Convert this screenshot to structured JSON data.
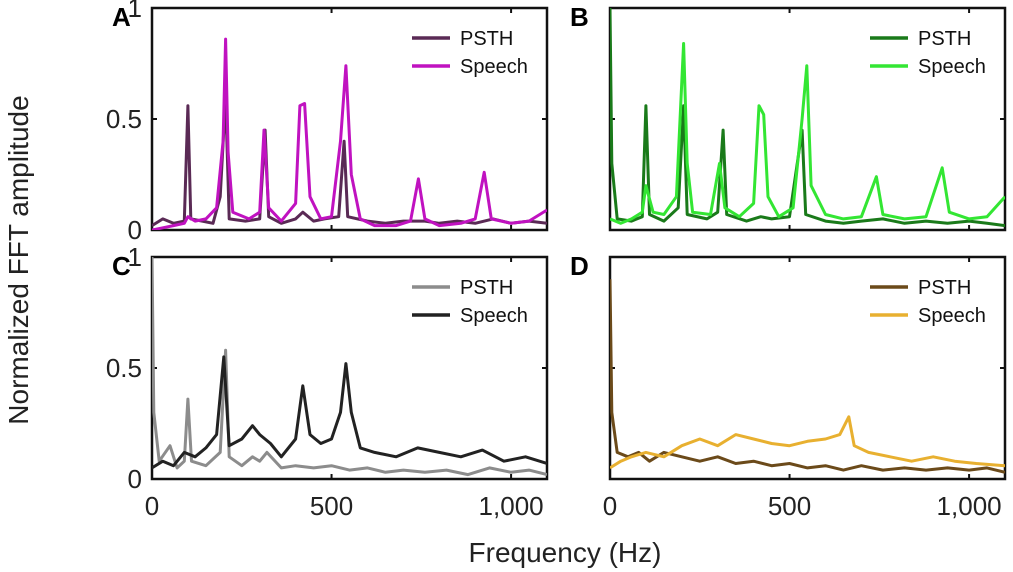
{
  "figure": {
    "ylabel": "Normalized FFT amplitude",
    "xlabel": "Frequency (Hz)"
  },
  "chart_data": [
    {
      "type": "line",
      "panel": "A",
      "xlim": [
        0,
        1100
      ],
      "ylim": [
        0,
        1
      ],
      "yticks": [
        "0",
        "0.5",
        "1"
      ],
      "xticks": [],
      "legend_position": "top-right",
      "series": [
        {
          "name": "PSTH",
          "color": "#5a2a55",
          "points": [
            [
              0,
              0.02
            ],
            [
              30,
              0.05
            ],
            [
              60,
              0.03
            ],
            [
              90,
              0.04
            ],
            [
              100,
              0.56
            ],
            [
              108,
              0.05
            ],
            [
              140,
              0.04
            ],
            [
              170,
              0.03
            ],
            [
              190,
              0.15
            ],
            [
              205,
              0.6
            ],
            [
              215,
              0.05
            ],
            [
              260,
              0.04
            ],
            [
              300,
              0.05
            ],
            [
              315,
              0.45
            ],
            [
              325,
              0.06
            ],
            [
              360,
              0.03
            ],
            [
              400,
              0.05
            ],
            [
              420,
              0.08
            ],
            [
              450,
              0.04
            ],
            [
              480,
              0.05
            ],
            [
              520,
              0.06
            ],
            [
              535,
              0.4
            ],
            [
              545,
              0.06
            ],
            [
              600,
              0.04
            ],
            [
              650,
              0.03
            ],
            [
              700,
              0.04
            ],
            [
              760,
              0.04
            ],
            [
              800,
              0.03
            ],
            [
              850,
              0.04
            ],
            [
              900,
              0.03
            ],
            [
              950,
              0.05
            ],
            [
              1000,
              0.03
            ],
            [
              1050,
              0.04
            ],
            [
              1100,
              0.03
            ]
          ]
        },
        {
          "name": "Speech",
          "color": "#c012c0",
          "points": [
            [
              0,
              0.0
            ],
            [
              30,
              0.01
            ],
            [
              60,
              0.02
            ],
            [
              90,
              0.03
            ],
            [
              100,
              0.06
            ],
            [
              120,
              0.04
            ],
            [
              150,
              0.05
            ],
            [
              180,
              0.1
            ],
            [
              198,
              0.4
            ],
            [
              205,
              0.86
            ],
            [
              212,
              0.35
            ],
            [
              225,
              0.08
            ],
            [
              270,
              0.05
            ],
            [
              300,
              0.08
            ],
            [
              312,
              0.45
            ],
            [
              325,
              0.1
            ],
            [
              360,
              0.04
            ],
            [
              400,
              0.12
            ],
            [
              412,
              0.56
            ],
            [
              425,
              0.57
            ],
            [
              440,
              0.15
            ],
            [
              470,
              0.05
            ],
            [
              500,
              0.06
            ],
            [
              525,
              0.4
            ],
            [
              540,
              0.74
            ],
            [
              555,
              0.25
            ],
            [
              580,
              0.05
            ],
            [
              620,
              0.02
            ],
            [
              680,
              0.02
            ],
            [
              720,
              0.04
            ],
            [
              742,
              0.23
            ],
            [
              760,
              0.05
            ],
            [
              800,
              0.02
            ],
            [
              860,
              0.03
            ],
            [
              900,
              0.05
            ],
            [
              925,
              0.26
            ],
            [
              945,
              0.05
            ],
            [
              1000,
              0.03
            ],
            [
              1050,
              0.04
            ],
            [
              1100,
              0.09
            ]
          ]
        }
      ]
    },
    {
      "type": "line",
      "panel": "B",
      "xlim": [
        0,
        1100
      ],
      "ylim": [
        0,
        1
      ],
      "yticks": [],
      "xticks": [],
      "legend_position": "top-right",
      "series": [
        {
          "name": "PSTH",
          "color": "#1a7a1a",
          "points": [
            [
              0,
              1.0
            ],
            [
              5,
              0.3
            ],
            [
              20,
              0.05
            ],
            [
              60,
              0.04
            ],
            [
              90,
              0.06
            ],
            [
              100,
              0.56
            ],
            [
              110,
              0.07
            ],
            [
              150,
              0.04
            ],
            [
              190,
              0.1
            ],
            [
              205,
              0.56
            ],
            [
              215,
              0.07
            ],
            [
              270,
              0.05
            ],
            [
              300,
              0.08
            ],
            [
              315,
              0.45
            ],
            [
              325,
              0.07
            ],
            [
              380,
              0.04
            ],
            [
              420,
              0.06
            ],
            [
              450,
              0.05
            ],
            [
              500,
              0.06
            ],
            [
              535,
              0.45
            ],
            [
              545,
              0.07
            ],
            [
              600,
              0.04
            ],
            [
              650,
              0.03
            ],
            [
              700,
              0.04
            ],
            [
              760,
              0.05
            ],
            [
              820,
              0.03
            ],
            [
              880,
              0.04
            ],
            [
              940,
              0.03
            ],
            [
              1000,
              0.04
            ],
            [
              1050,
              0.03
            ],
            [
              1100,
              0.02
            ]
          ]
        },
        {
          "name": "Speech",
          "color": "#33e633",
          "points": [
            [
              0,
              0.05
            ],
            [
              30,
              0.03
            ],
            [
              60,
              0.05
            ],
            [
              90,
              0.08
            ],
            [
              100,
              0.2
            ],
            [
              120,
              0.08
            ],
            [
              150,
              0.07
            ],
            [
              185,
              0.15
            ],
            [
              205,
              0.84
            ],
            [
              215,
              0.3
            ],
            [
              230,
              0.08
            ],
            [
              280,
              0.07
            ],
            [
              305,
              0.3
            ],
            [
              320,
              0.1
            ],
            [
              360,
              0.06
            ],
            [
              400,
              0.12
            ],
            [
              415,
              0.56
            ],
            [
              428,
              0.52
            ],
            [
              440,
              0.15
            ],
            [
              470,
              0.06
            ],
            [
              510,
              0.1
            ],
            [
              535,
              0.5
            ],
            [
              548,
              0.74
            ],
            [
              560,
              0.2
            ],
            [
              600,
              0.07
            ],
            [
              650,
              0.05
            ],
            [
              700,
              0.06
            ],
            [
              742,
              0.24
            ],
            [
              760,
              0.07
            ],
            [
              820,
              0.05
            ],
            [
              880,
              0.06
            ],
            [
              925,
              0.28
            ],
            [
              945,
              0.08
            ],
            [
              1000,
              0.05
            ],
            [
              1050,
              0.06
            ],
            [
              1100,
              0.15
            ]
          ]
        }
      ]
    },
    {
      "type": "line",
      "panel": "C",
      "xlim": [
        0,
        1100
      ],
      "ylim": [
        0,
        1
      ],
      "yticks": [
        "0",
        "0.5",
        "1"
      ],
      "xticks": [
        "0",
        "500",
        "1,000"
      ],
      "legend_position": "top-right",
      "series": [
        {
          "name": "PSTH",
          "color": "#8c8c8c",
          "points": [
            [
              0,
              1.0
            ],
            [
              5,
              0.3
            ],
            [
              20,
              0.08
            ],
            [
              50,
              0.15
            ],
            [
              70,
              0.05
            ],
            [
              90,
              0.08
            ],
            [
              100,
              0.36
            ],
            [
              110,
              0.08
            ],
            [
              150,
              0.06
            ],
            [
              190,
              0.12
            ],
            [
              205,
              0.58
            ],
            [
              215,
              0.1
            ],
            [
              250,
              0.06
            ],
            [
              280,
              0.1
            ],
            [
              300,
              0.08
            ],
            [
              320,
              0.12
            ],
            [
              360,
              0.05
            ],
            [
              400,
              0.06
            ],
            [
              450,
              0.05
            ],
            [
              500,
              0.06
            ],
            [
              550,
              0.04
            ],
            [
              600,
              0.05
            ],
            [
              650,
              0.03
            ],
            [
              700,
              0.04
            ],
            [
              760,
              0.03
            ],
            [
              820,
              0.04
            ],
            [
              880,
              0.02
            ],
            [
              940,
              0.05
            ],
            [
              1000,
              0.03
            ],
            [
              1050,
              0.04
            ],
            [
              1100,
              0.02
            ]
          ]
        },
        {
          "name": "Speech",
          "color": "#222222",
          "points": [
            [
              0,
              0.05
            ],
            [
              30,
              0.08
            ],
            [
              60,
              0.06
            ],
            [
              90,
              0.12
            ],
            [
              120,
              0.1
            ],
            [
              150,
              0.14
            ],
            [
              180,
              0.2
            ],
            [
              200,
              0.55
            ],
            [
              215,
              0.15
            ],
            [
              250,
              0.18
            ],
            [
              280,
              0.24
            ],
            [
              300,
              0.2
            ],
            [
              330,
              0.16
            ],
            [
              360,
              0.1
            ],
            [
              400,
              0.18
            ],
            [
              420,
              0.42
            ],
            [
              440,
              0.2
            ],
            [
              470,
              0.16
            ],
            [
              500,
              0.18
            ],
            [
              525,
              0.3
            ],
            [
              540,
              0.52
            ],
            [
              555,
              0.3
            ],
            [
              580,
              0.14
            ],
            [
              620,
              0.12
            ],
            [
              680,
              0.1
            ],
            [
              740,
              0.14
            ],
            [
              800,
              0.12
            ],
            [
              860,
              0.1
            ],
            [
              920,
              0.13
            ],
            [
              980,
              0.08
            ],
            [
              1040,
              0.1
            ],
            [
              1100,
              0.07
            ]
          ]
        }
      ]
    },
    {
      "type": "line",
      "panel": "D",
      "xlim": [
        0,
        1100
      ],
      "ylim": [
        0,
        1
      ],
      "yticks": [],
      "xticks": [
        "0",
        "500",
        "1,000"
      ],
      "legend_position": "top-right",
      "series": [
        {
          "name": "PSTH",
          "color": "#6b4a1a",
          "points": [
            [
              0,
              0.9
            ],
            [
              5,
              0.3
            ],
            [
              20,
              0.12
            ],
            [
              50,
              0.1
            ],
            [
              80,
              0.12
            ],
            [
              110,
              0.08
            ],
            [
              150,
              0.12
            ],
            [
              200,
              0.1
            ],
            [
              250,
              0.08
            ],
            [
              300,
              0.1
            ],
            [
              350,
              0.07
            ],
            [
              400,
              0.08
            ],
            [
              450,
              0.06
            ],
            [
              500,
              0.07
            ],
            [
              550,
              0.05
            ],
            [
              600,
              0.06
            ],
            [
              650,
              0.04
            ],
            [
              700,
              0.06
            ],
            [
              760,
              0.04
            ],
            [
              820,
              0.05
            ],
            [
              880,
              0.04
            ],
            [
              940,
              0.05
            ],
            [
              1000,
              0.04
            ],
            [
              1050,
              0.05
            ],
            [
              1100,
              0.03
            ]
          ]
        },
        {
          "name": "Speech",
          "color": "#e8b030",
          "points": [
            [
              0,
              0.05
            ],
            [
              30,
              0.08
            ],
            [
              60,
              0.1
            ],
            [
              100,
              0.12
            ],
            [
              150,
              0.1
            ],
            [
              200,
              0.15
            ],
            [
              250,
              0.18
            ],
            [
              300,
              0.15
            ],
            [
              350,
              0.2
            ],
            [
              400,
              0.18
            ],
            [
              450,
              0.16
            ],
            [
              500,
              0.15
            ],
            [
              550,
              0.17
            ],
            [
              600,
              0.18
            ],
            [
              640,
              0.2
            ],
            [
              665,
              0.28
            ],
            [
              680,
              0.15
            ],
            [
              720,
              0.12
            ],
            [
              780,
              0.1
            ],
            [
              840,
              0.08
            ],
            [
              900,
              0.1
            ],
            [
              960,
              0.08
            ],
            [
              1020,
              0.07
            ],
            [
              1100,
              0.06
            ]
          ]
        }
      ]
    }
  ]
}
